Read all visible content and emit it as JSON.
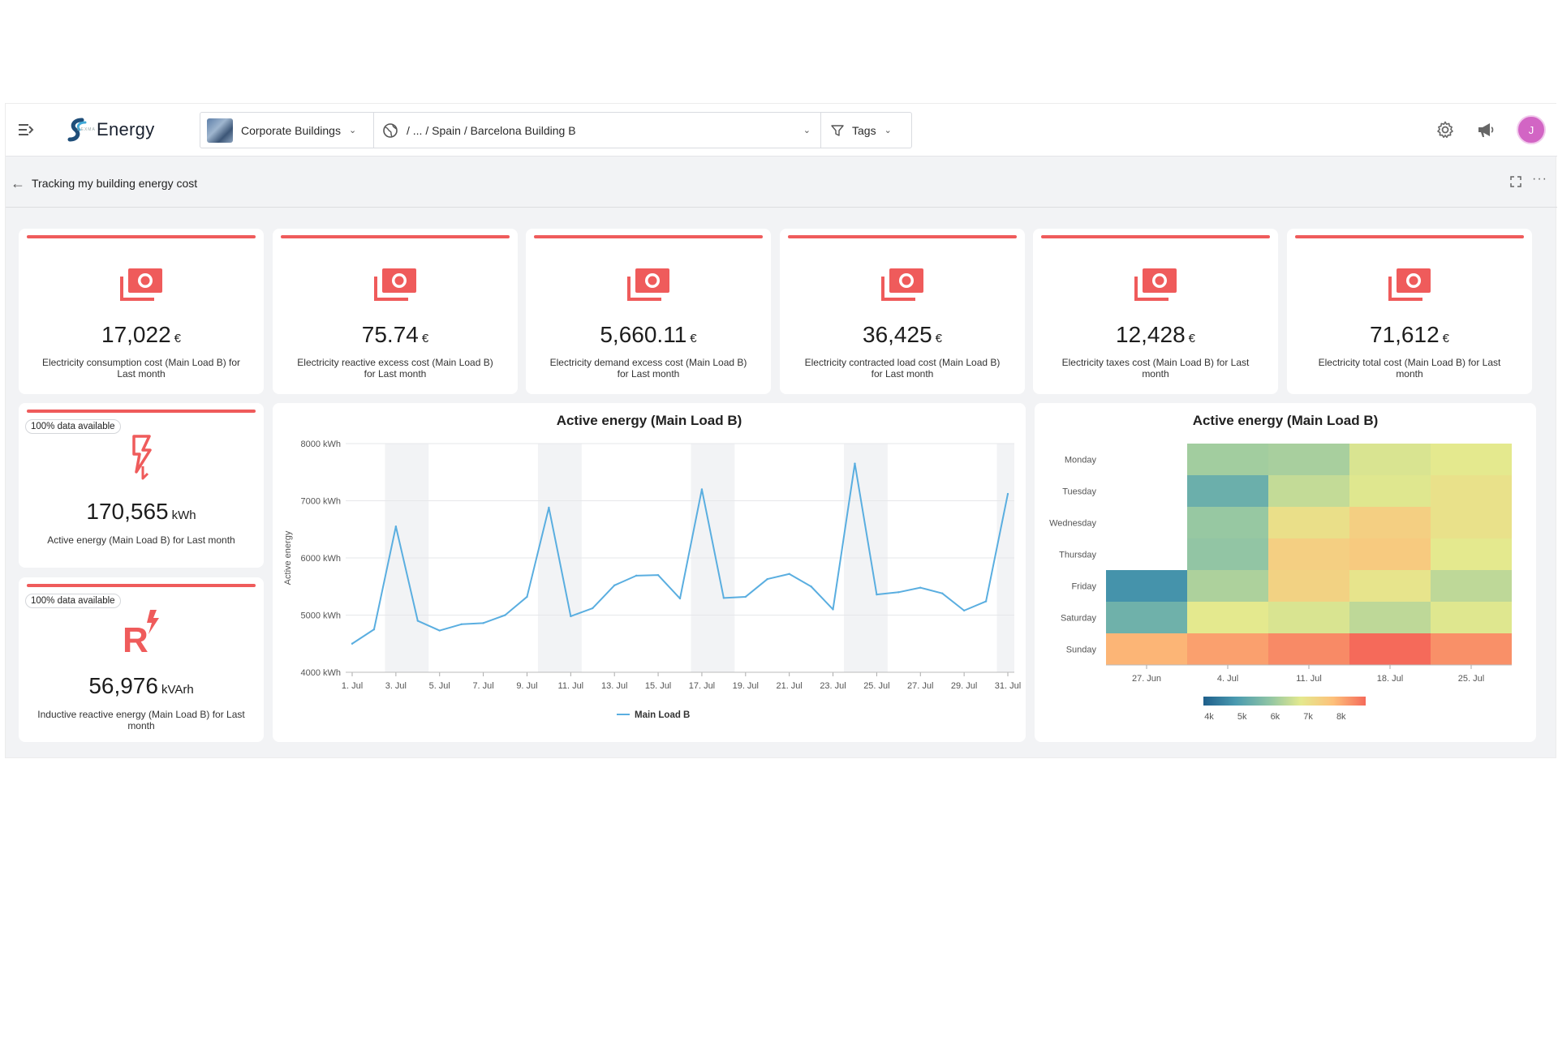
{
  "header": {
    "app_name": "Energy",
    "app_subtitle": "DEXMA",
    "building_selector": "Corporate Buildings",
    "location_path": "/ ... / Spain / Barcelona Building B",
    "tags_label": "Tags",
    "avatar_initial": "J"
  },
  "page": {
    "title": "Tracking my building energy cost"
  },
  "kpis": [
    {
      "value": "17,022",
      "unit": "€",
      "label": "Electricity consumption cost (Main Load B) for Last month"
    },
    {
      "value": "75.74",
      "unit": "€",
      "label": "Electricity reactive excess cost (Main Load B) for Last month"
    },
    {
      "value": "5,660.11",
      "unit": "€",
      "label": "Electricity demand excess cost (Main Load B) for Last month"
    },
    {
      "value": "36,425",
      "unit": "€",
      "label": "Electricity contracted load cost (Main Load B) for Last month"
    },
    {
      "value": "12,428",
      "unit": "€",
      "label": "Electricity taxes cost (Main Load B) for Last month"
    },
    {
      "value": "71,612",
      "unit": "€",
      "label": "Electricity total cost (Main Load B) for Last month"
    }
  ],
  "small_kpis": [
    {
      "badge": "100% data available",
      "icon": "lightning-icon",
      "value": "170,565",
      "unit": "kWh",
      "label": "Active energy (Main Load B) for Last month"
    },
    {
      "badge": "100% data available",
      "icon": "reactive-r-icon",
      "value": "56,976",
      "unit": "kVArh",
      "label": "Inductive reactive energy (Main Load B) for Last month"
    }
  ],
  "colors": {
    "accent": "#ef5b5b",
    "line": "#5aaee0",
    "weekend_band": "#f2f3f5"
  },
  "chart_data": [
    {
      "type": "line",
      "title": "Active energy (Main Load B)",
      "ylabel": "Active energy",
      "ylim": [
        4000,
        8000
      ],
      "y_ticks": [
        "8000 kWh",
        "7000 kWh",
        "6000 kWh",
        "5000 kWh",
        "4000 kWh"
      ],
      "y_tick_values": [
        8000,
        7000,
        6000,
        5000,
        4000
      ],
      "x_tick_labels": [
        "1. Jul",
        "3. Jul",
        "5. Jul",
        "7. Jul",
        "9. Jul",
        "11. Jul",
        "13. Jul",
        "15. Jul",
        "17. Jul",
        "19. Jul",
        "21. Jul",
        "23. Jul",
        "25. Jul",
        "27. Jul",
        "29. Jul",
        "31. Jul"
      ],
      "x_tick_days": [
        1,
        3,
        5,
        7,
        9,
        11,
        13,
        15,
        17,
        19,
        21,
        23,
        25,
        27,
        29,
        31
      ],
      "weekend_bands": [
        [
          3,
          4
        ],
        [
          10,
          11
        ],
        [
          17,
          18
        ],
        [
          24,
          25
        ],
        [
          31,
          31
        ]
      ],
      "grid": true,
      "legend": "bottom",
      "series": [
        {
          "name": "Main Load B",
          "x": [
            1,
            2,
            3,
            4,
            5,
            6,
            7,
            8,
            9,
            10,
            11,
            12,
            13,
            14,
            15,
            16,
            17,
            18,
            19,
            20,
            21,
            22,
            23,
            24,
            25,
            26,
            27,
            28,
            29,
            30,
            31
          ],
          "values": [
            4500,
            4750,
            6550,
            4900,
            4730,
            4840,
            4860,
            5000,
            5320,
            6880,
            4980,
            5120,
            5520,
            5690,
            5700,
            5290,
            7200,
            5300,
            5320,
            5630,
            5720,
            5500,
            5100,
            7650,
            5360,
            5400,
            5480,
            5380,
            5080,
            5240,
            7120
          ]
        }
      ]
    },
    {
      "type": "heatmap",
      "title": "Active energy (Main Load B)",
      "y_categories": [
        "Monday",
        "Tuesday",
        "Wednesday",
        "Thursday",
        "Friday",
        "Saturday",
        "Sunday"
      ],
      "x_categories": [
        "27. Jun",
        "4. Jul",
        "11. Jul",
        "18. Jul",
        "25. Jul"
      ],
      "values": [
        [
          null,
          5800,
          5850,
          6300,
          6400
        ],
        [
          null,
          5200,
          6100,
          6350,
          6550
        ],
        [
          null,
          5700,
          6600,
          6900,
          6550
        ],
        [
          null,
          5650,
          6900,
          7000,
          6400
        ],
        [
          4700,
          5900,
          6850,
          6500,
          6050
        ],
        [
          5250,
          6400,
          6300,
          6050,
          6350
        ],
        [
          7300,
          7500,
          7700,
          8000,
          7650
        ]
      ],
      "colorscale": {
        "min": 4000,
        "max": 8000,
        "colors": [
          "#1f5f8b",
          "#4a9ab0",
          "#8cc3a5",
          "#e4e98e",
          "#fdc07a",
          "#f56a5a"
        ]
      },
      "legend_ticks": [
        "4k",
        "5k",
        "6k",
        "7k",
        "8k"
      ],
      "legend_tick_values": [
        4000,
        5000,
        6000,
        7000,
        8000
      ]
    }
  ]
}
